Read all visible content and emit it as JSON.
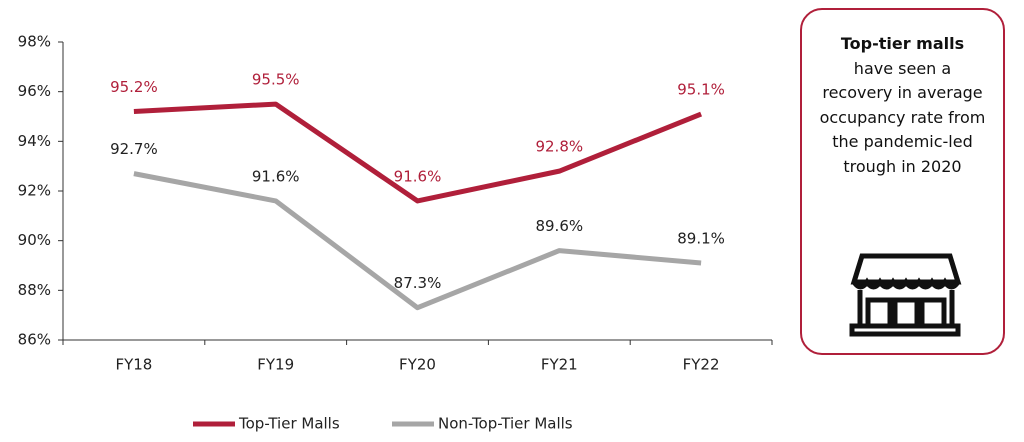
{
  "chart_data": {
    "type": "line",
    "categories": [
      "FY18",
      "FY19",
      "FY20",
      "FY21",
      "FY22"
    ],
    "series": [
      {
        "name": "Top-Tier Malls",
        "color": "#b01f3a",
        "values": [
          95.2,
          95.5,
          91.6,
          92.8,
          95.1
        ],
        "value_labels": [
          "95.2%",
          "95.5%",
          "91.6%",
          "92.8%",
          "95.1%"
        ]
      },
      {
        "name": "Non-Top-Tier Malls",
        "color": "#a6a6a6",
        "values": [
          92.7,
          91.6,
          87.3,
          89.6,
          89.1
        ],
        "value_labels": [
          "92.7%",
          "91.6%",
          "87.3%",
          "89.6%",
          "89.1%"
        ]
      }
    ],
    "ylim": [
      86,
      98
    ],
    "yticks": [
      {
        "value": 86,
        "label": "86%"
      },
      {
        "value": 88,
        "label": "88%"
      },
      {
        "value": 90,
        "label": "90%"
      },
      {
        "value": 92,
        "label": "92%"
      },
      {
        "value": 94,
        "label": "94%"
      },
      {
        "value": 96,
        "label": "96%"
      },
      {
        "value": 98,
        "label": "98%"
      }
    ],
    "grid": false,
    "legend": "bottom",
    "annotation": {
      "title": "Top-tier malls",
      "text": "have seen a recovery in average occupancy rate from the pandemic-led trough in 2020"
    }
  }
}
